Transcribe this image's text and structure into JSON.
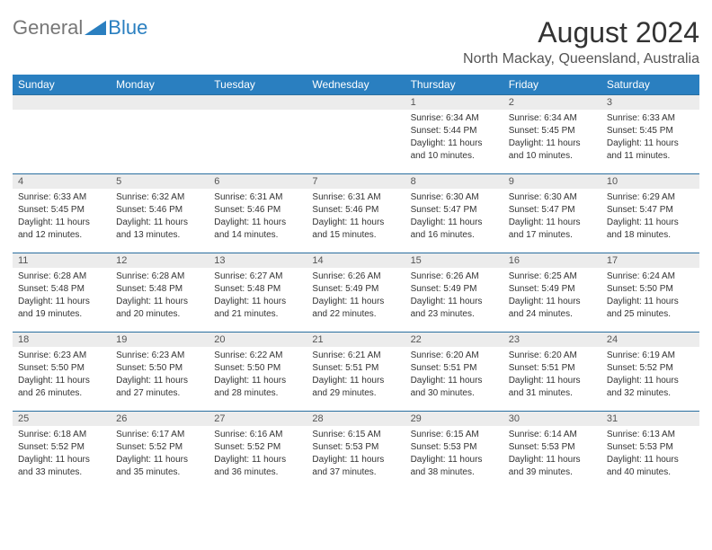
{
  "logo": {
    "text1": "General",
    "text2": "Blue"
  },
  "header": {
    "month_title": "August 2024",
    "location": "North Mackay, Queensland, Australia"
  },
  "colors": {
    "accent": "#2a7fc0",
    "header_text": "#ffffff",
    "daynum_bg": "#ececec",
    "border": "#2a6fa0"
  },
  "day_headers": [
    "Sunday",
    "Monday",
    "Tuesday",
    "Wednesday",
    "Thursday",
    "Friday",
    "Saturday"
  ],
  "weeks": [
    [
      null,
      null,
      null,
      null,
      {
        "num": "1",
        "sunrise": "Sunrise: 6:34 AM",
        "sunset": "Sunset: 5:44 PM",
        "dl1": "Daylight: 11 hours",
        "dl2": "and 10 minutes."
      },
      {
        "num": "2",
        "sunrise": "Sunrise: 6:34 AM",
        "sunset": "Sunset: 5:45 PM",
        "dl1": "Daylight: 11 hours",
        "dl2": "and 10 minutes."
      },
      {
        "num": "3",
        "sunrise": "Sunrise: 6:33 AM",
        "sunset": "Sunset: 5:45 PM",
        "dl1": "Daylight: 11 hours",
        "dl2": "and 11 minutes."
      }
    ],
    [
      {
        "num": "4",
        "sunrise": "Sunrise: 6:33 AM",
        "sunset": "Sunset: 5:45 PM",
        "dl1": "Daylight: 11 hours",
        "dl2": "and 12 minutes."
      },
      {
        "num": "5",
        "sunrise": "Sunrise: 6:32 AM",
        "sunset": "Sunset: 5:46 PM",
        "dl1": "Daylight: 11 hours",
        "dl2": "and 13 minutes."
      },
      {
        "num": "6",
        "sunrise": "Sunrise: 6:31 AM",
        "sunset": "Sunset: 5:46 PM",
        "dl1": "Daylight: 11 hours",
        "dl2": "and 14 minutes."
      },
      {
        "num": "7",
        "sunrise": "Sunrise: 6:31 AM",
        "sunset": "Sunset: 5:46 PM",
        "dl1": "Daylight: 11 hours",
        "dl2": "and 15 minutes."
      },
      {
        "num": "8",
        "sunrise": "Sunrise: 6:30 AM",
        "sunset": "Sunset: 5:47 PM",
        "dl1": "Daylight: 11 hours",
        "dl2": "and 16 minutes."
      },
      {
        "num": "9",
        "sunrise": "Sunrise: 6:30 AM",
        "sunset": "Sunset: 5:47 PM",
        "dl1": "Daylight: 11 hours",
        "dl2": "and 17 minutes."
      },
      {
        "num": "10",
        "sunrise": "Sunrise: 6:29 AM",
        "sunset": "Sunset: 5:47 PM",
        "dl1": "Daylight: 11 hours",
        "dl2": "and 18 minutes."
      }
    ],
    [
      {
        "num": "11",
        "sunrise": "Sunrise: 6:28 AM",
        "sunset": "Sunset: 5:48 PM",
        "dl1": "Daylight: 11 hours",
        "dl2": "and 19 minutes."
      },
      {
        "num": "12",
        "sunrise": "Sunrise: 6:28 AM",
        "sunset": "Sunset: 5:48 PM",
        "dl1": "Daylight: 11 hours",
        "dl2": "and 20 minutes."
      },
      {
        "num": "13",
        "sunrise": "Sunrise: 6:27 AM",
        "sunset": "Sunset: 5:48 PM",
        "dl1": "Daylight: 11 hours",
        "dl2": "and 21 minutes."
      },
      {
        "num": "14",
        "sunrise": "Sunrise: 6:26 AM",
        "sunset": "Sunset: 5:49 PM",
        "dl1": "Daylight: 11 hours",
        "dl2": "and 22 minutes."
      },
      {
        "num": "15",
        "sunrise": "Sunrise: 6:26 AM",
        "sunset": "Sunset: 5:49 PM",
        "dl1": "Daylight: 11 hours",
        "dl2": "and 23 minutes."
      },
      {
        "num": "16",
        "sunrise": "Sunrise: 6:25 AM",
        "sunset": "Sunset: 5:49 PM",
        "dl1": "Daylight: 11 hours",
        "dl2": "and 24 minutes."
      },
      {
        "num": "17",
        "sunrise": "Sunrise: 6:24 AM",
        "sunset": "Sunset: 5:50 PM",
        "dl1": "Daylight: 11 hours",
        "dl2": "and 25 minutes."
      }
    ],
    [
      {
        "num": "18",
        "sunrise": "Sunrise: 6:23 AM",
        "sunset": "Sunset: 5:50 PM",
        "dl1": "Daylight: 11 hours",
        "dl2": "and 26 minutes."
      },
      {
        "num": "19",
        "sunrise": "Sunrise: 6:23 AM",
        "sunset": "Sunset: 5:50 PM",
        "dl1": "Daylight: 11 hours",
        "dl2": "and 27 minutes."
      },
      {
        "num": "20",
        "sunrise": "Sunrise: 6:22 AM",
        "sunset": "Sunset: 5:50 PM",
        "dl1": "Daylight: 11 hours",
        "dl2": "and 28 minutes."
      },
      {
        "num": "21",
        "sunrise": "Sunrise: 6:21 AM",
        "sunset": "Sunset: 5:51 PM",
        "dl1": "Daylight: 11 hours",
        "dl2": "and 29 minutes."
      },
      {
        "num": "22",
        "sunrise": "Sunrise: 6:20 AM",
        "sunset": "Sunset: 5:51 PM",
        "dl1": "Daylight: 11 hours",
        "dl2": "and 30 minutes."
      },
      {
        "num": "23",
        "sunrise": "Sunrise: 6:20 AM",
        "sunset": "Sunset: 5:51 PM",
        "dl1": "Daylight: 11 hours",
        "dl2": "and 31 minutes."
      },
      {
        "num": "24",
        "sunrise": "Sunrise: 6:19 AM",
        "sunset": "Sunset: 5:52 PM",
        "dl1": "Daylight: 11 hours",
        "dl2": "and 32 minutes."
      }
    ],
    [
      {
        "num": "25",
        "sunrise": "Sunrise: 6:18 AM",
        "sunset": "Sunset: 5:52 PM",
        "dl1": "Daylight: 11 hours",
        "dl2": "and 33 minutes."
      },
      {
        "num": "26",
        "sunrise": "Sunrise: 6:17 AM",
        "sunset": "Sunset: 5:52 PM",
        "dl1": "Daylight: 11 hours",
        "dl2": "and 35 minutes."
      },
      {
        "num": "27",
        "sunrise": "Sunrise: 6:16 AM",
        "sunset": "Sunset: 5:52 PM",
        "dl1": "Daylight: 11 hours",
        "dl2": "and 36 minutes."
      },
      {
        "num": "28",
        "sunrise": "Sunrise: 6:15 AM",
        "sunset": "Sunset: 5:53 PM",
        "dl1": "Daylight: 11 hours",
        "dl2": "and 37 minutes."
      },
      {
        "num": "29",
        "sunrise": "Sunrise: 6:15 AM",
        "sunset": "Sunset: 5:53 PM",
        "dl1": "Daylight: 11 hours",
        "dl2": "and 38 minutes."
      },
      {
        "num": "30",
        "sunrise": "Sunrise: 6:14 AM",
        "sunset": "Sunset: 5:53 PM",
        "dl1": "Daylight: 11 hours",
        "dl2": "and 39 minutes."
      },
      {
        "num": "31",
        "sunrise": "Sunrise: 6:13 AM",
        "sunset": "Sunset: 5:53 PM",
        "dl1": "Daylight: 11 hours",
        "dl2": "and 40 minutes."
      }
    ]
  ]
}
